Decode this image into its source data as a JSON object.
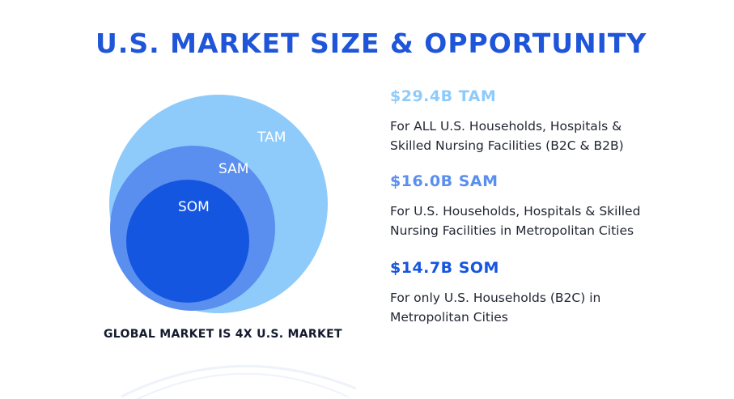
{
  "title": "U.S. MARKET SIZE & OPPORTUNITY",
  "colors": {
    "title": "#1f55d9",
    "tam": "#8ecbfb",
    "sam": "#5a8ff0",
    "som": "#1556e0",
    "text": "#222733"
  },
  "diagram": {
    "tam_label": "TAM",
    "sam_label": "SAM",
    "som_label": "SOM"
  },
  "footnote": "GLOBAL MARKET IS 4X U.S. MARKET",
  "metrics": [
    {
      "heading": "$29.4B TAM",
      "line1": "For ALL U.S. Households, Hospitals &",
      "line2": "Skilled Nursing Facilities (B2C & B2B)"
    },
    {
      "heading": "$16.0B SAM",
      "line1": "For U.S. Households, Hospitals & Skilled",
      "line2": "Nursing Facilities in Metropolitan Cities"
    },
    {
      "heading": "$14.7B SOM",
      "line1": "For only U.S. Households (B2C) in",
      "line2": "Metropolitan Cities"
    }
  ]
}
